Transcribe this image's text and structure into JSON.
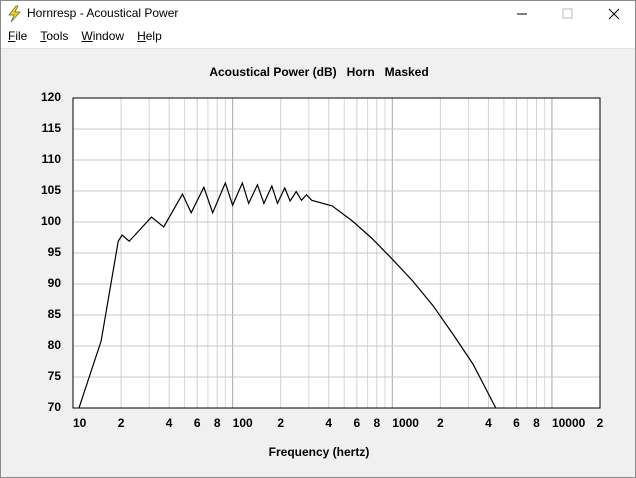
{
  "window": {
    "title": "Hornresp - Acoustical Power"
  },
  "menu": [
    "File",
    "Tools",
    "Window",
    "Help"
  ],
  "chart_data": {
    "type": "line",
    "title": "Acoustical Power (dB)   Horn   Masked",
    "x_label": "Frequency (hertz)",
    "log_x": true,
    "grid": true,
    "xlim": [
      10,
      20000
    ],
    "ylim": [
      70,
      120
    ],
    "yticks": [
      70,
      75,
      80,
      85,
      90,
      95,
      100,
      105,
      110,
      115,
      120
    ],
    "xticks": [
      10,
      {
        "value": 20,
        "label": "2"
      },
      {
        "value": 40,
        "label": "4"
      },
      {
        "value": 60,
        "label": "6"
      },
      {
        "value": 80,
        "label": "8"
      },
      100,
      {
        "value": 200,
        "label": "2"
      },
      {
        "value": 400,
        "label": "4"
      },
      {
        "value": 600,
        "label": "6"
      },
      {
        "value": 800,
        "label": "8"
      },
      1000,
      {
        "value": 2000,
        "label": "2"
      },
      {
        "value": 4000,
        "label": "4"
      },
      {
        "value": 6000,
        "label": "6"
      },
      {
        "value": 8000,
        "label": "8"
      },
      10000,
      {
        "value": 20000,
        "label": "2"
      }
    ],
    "x_minor_grid": [
      30,
      50,
      70,
      90,
      300,
      500,
      700,
      900,
      3000,
      5000,
      7000,
      9000
    ],
    "series": [
      {
        "name": "Acoustical Power",
        "color": "#000000",
        "x": [
          10.9,
          15,
          19.2,
          20.3,
          22.5,
          31,
          37,
          48.5,
          55,
          66,
          75,
          90,
          100,
          115,
          126,
          143,
          157,
          176,
          191,
          212,
          229,
          250,
          270,
          290,
          313,
          420,
          560,
          750,
          1000,
          1340,
          1800,
          2400,
          3200,
          4450
        ],
        "values": [
          70,
          80.8,
          96.9,
          97.9,
          96.9,
          100.8,
          99.2,
          104.5,
          101.5,
          105.6,
          101.5,
          106.3,
          102.7,
          106.3,
          103,
          106,
          103,
          105.8,
          103,
          105.5,
          103.4,
          104.9,
          103.5,
          104.4,
          103.5,
          102.6,
          100.2,
          97.3,
          94,
          90.5,
          86.5,
          81.9,
          77.1,
          70
        ]
      }
    ]
  }
}
